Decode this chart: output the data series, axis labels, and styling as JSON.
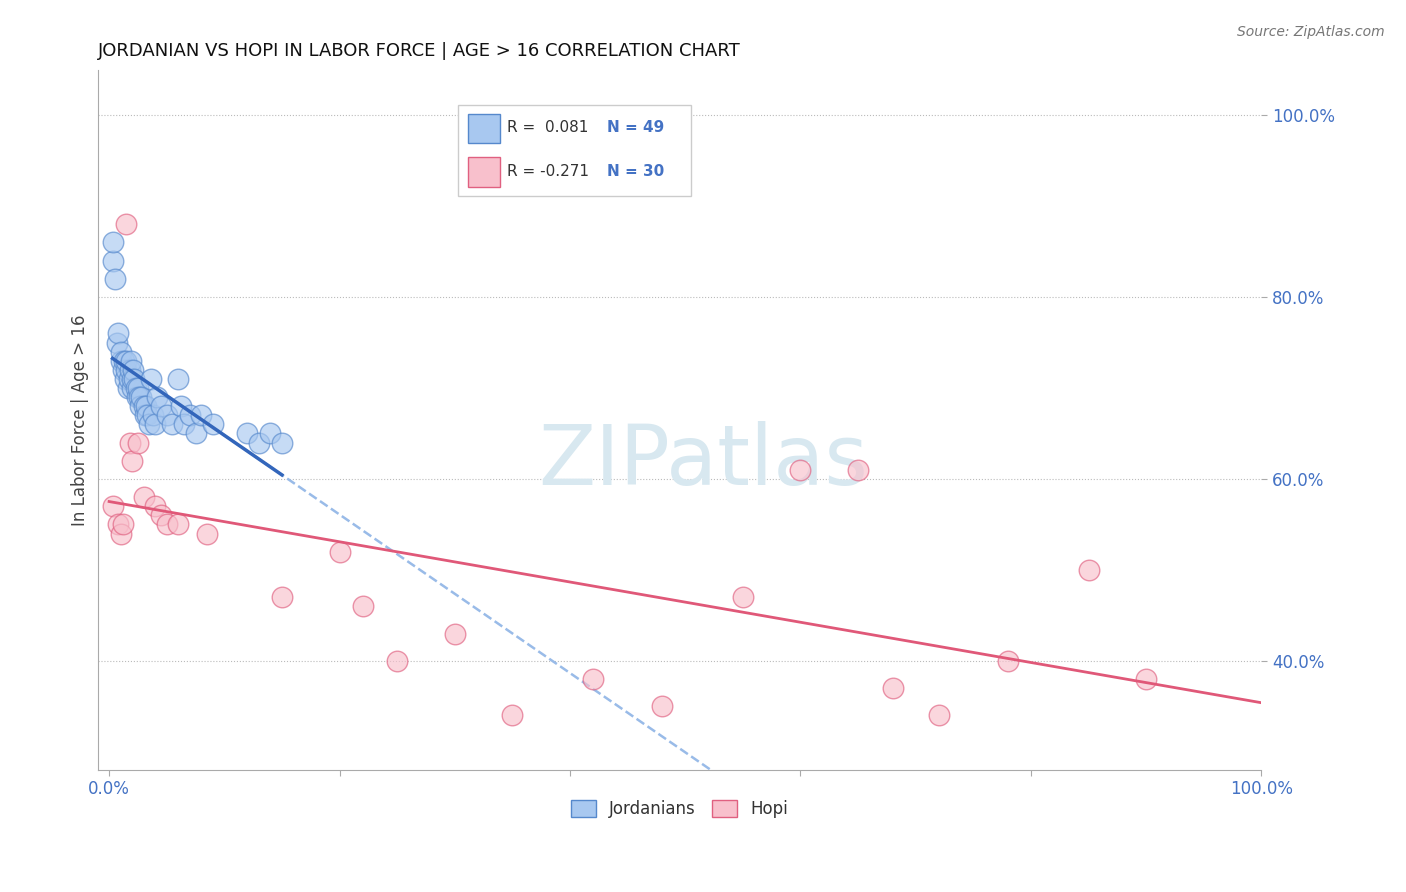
{
  "title": "JORDANIAN VS HOPI IN LABOR FORCE | AGE > 16 CORRELATION CHART",
  "source": "Source: ZipAtlas.com",
  "ylabel_label": "In Labor Force | Age > 16",
  "legend_blue_R": "R =  0.081",
  "legend_blue_N": "N = 49",
  "legend_pink_R": "R = -0.271",
  "legend_pink_N": "N = 30",
  "blue_color": "#A8C8F0",
  "blue_edge_color": "#5588CC",
  "blue_line_color": "#3366BB",
  "blue_dash_color": "#99BBE8",
  "pink_color": "#F8C0CC",
  "pink_edge_color": "#E06080",
  "pink_line_color": "#E05878",
  "watermark_color": "#D8E8F0",
  "blue_points_x": [
    0.3,
    0.3,
    0.5,
    0.7,
    0.8,
    1.0,
    1.0,
    1.2,
    1.3,
    1.4,
    1.5,
    1.5,
    1.6,
    1.7,
    1.8,
    1.9,
    2.0,
    2.0,
    2.1,
    2.2,
    2.3,
    2.4,
    2.5,
    2.6,
    2.7,
    2.8,
    3.0,
    3.1,
    3.2,
    3.3,
    3.5,
    3.6,
    3.8,
    4.0,
    4.2,
    4.5,
    5.0,
    5.5,
    6.0,
    6.2,
    6.5,
    7.0,
    7.5,
    8.0,
    9.0,
    12.0,
    13.0,
    14.0,
    15.0
  ],
  "blue_points_y": [
    84.0,
    86.0,
    82.0,
    75.0,
    76.0,
    73.0,
    74.0,
    72.0,
    73.0,
    71.0,
    72.0,
    73.0,
    70.0,
    71.0,
    72.0,
    73.0,
    70.0,
    71.0,
    72.0,
    71.0,
    70.0,
    69.0,
    70.0,
    69.0,
    68.0,
    69.0,
    68.0,
    67.0,
    68.0,
    67.0,
    66.0,
    71.0,
    67.0,
    66.0,
    69.0,
    68.0,
    67.0,
    66.0,
    71.0,
    68.0,
    66.0,
    67.0,
    65.0,
    67.0,
    66.0,
    65.0,
    64.0,
    65.0,
    64.0
  ],
  "pink_points_x": [
    0.3,
    0.8,
    1.0,
    1.2,
    1.5,
    1.8,
    2.0,
    2.5,
    3.0,
    4.0,
    4.5,
    5.0,
    6.0,
    8.5,
    15.0,
    20.0,
    22.0,
    25.0,
    30.0,
    35.0,
    42.0,
    48.0,
    55.0,
    60.0,
    65.0,
    68.0,
    72.0,
    78.0,
    85.0,
    90.0
  ],
  "pink_points_y": [
    57.0,
    55.0,
    54.0,
    55.0,
    88.0,
    64.0,
    62.0,
    64.0,
    58.0,
    57.0,
    56.0,
    55.0,
    55.0,
    54.0,
    47.0,
    52.0,
    46.0,
    40.0,
    43.0,
    34.0,
    38.0,
    35.0,
    47.0,
    61.0,
    61.0,
    37.0,
    34.0,
    40.0,
    50.0,
    38.0
  ],
  "xlim_min": 0.0,
  "xlim_max": 100.0,
  "ylim_min": 28.0,
  "ylim_max": 105.0,
  "y_ticks": [
    40.0,
    60.0,
    80.0,
    100.0
  ],
  "y_tick_labels": [
    "40.0%",
    "60.0%",
    "80.0%",
    "100.0%"
  ],
  "x_tick_show_left": "0.0%",
  "x_tick_show_right": "100.0%"
}
